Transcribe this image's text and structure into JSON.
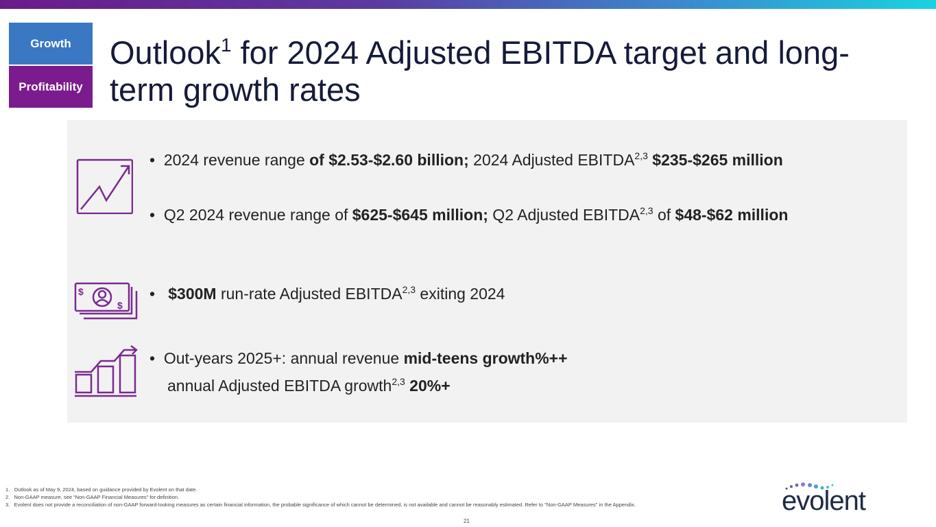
{
  "tags": {
    "growth": "Growth",
    "profitability": "Profitability"
  },
  "title": {
    "pre": "Outlook",
    "sup": "1",
    "post": " for 2024 Adjusted EBITDA target and long-term growth rates"
  },
  "bullets": [
    {
      "t1": "2024 revenue range ",
      "b1": "of  $2.53-$2.60 billion;",
      "t2": " 2024 Adjusted EBITDA",
      "sup": "2,3",
      "t3": "  ",
      "b2": "$235-$265 million"
    },
    {
      "t1": "Q2 2024 revenue range of  ",
      "b1": "$625-$645 million;",
      "t2": " Q2 Adjusted EBITDA",
      "sup": "2,3",
      "t3": " of ",
      "b2": "$48-$62 million"
    },
    {
      "b1": " $300M",
      "t2": " run-rate Adjusted EBITDA",
      "sup": "2,3",
      "t3": " exiting 2024"
    },
    {
      "t1": "Out-years 2025+: annual revenue ",
      "b1": "mid-teens growth%++",
      "t2": "annual Adjusted EBITDA growth",
      "sup": "2,3",
      "b2": " 20%+"
    }
  ],
  "footnotes": [
    "1.   Outlook as of May 9, 2024, based on guidance provided by Evolent on that date.",
    "2.   Non-GAAP measure, see “Non-GAAP Financial Measures” for definition.",
    "3.   Evolent does not provide a reconciliation of non-GAAP forward-looking measures as certain financial information, the probable significance of which cannot be determined, is not available and cannot be reasonably estimated. Refer to \"Non-GAAP Measures\" in the Appendix."
  ],
  "page_number": "21",
  "logo": "evolent",
  "colors": {
    "accent": "#7a1c8e",
    "blue": "#3a78c3"
  }
}
